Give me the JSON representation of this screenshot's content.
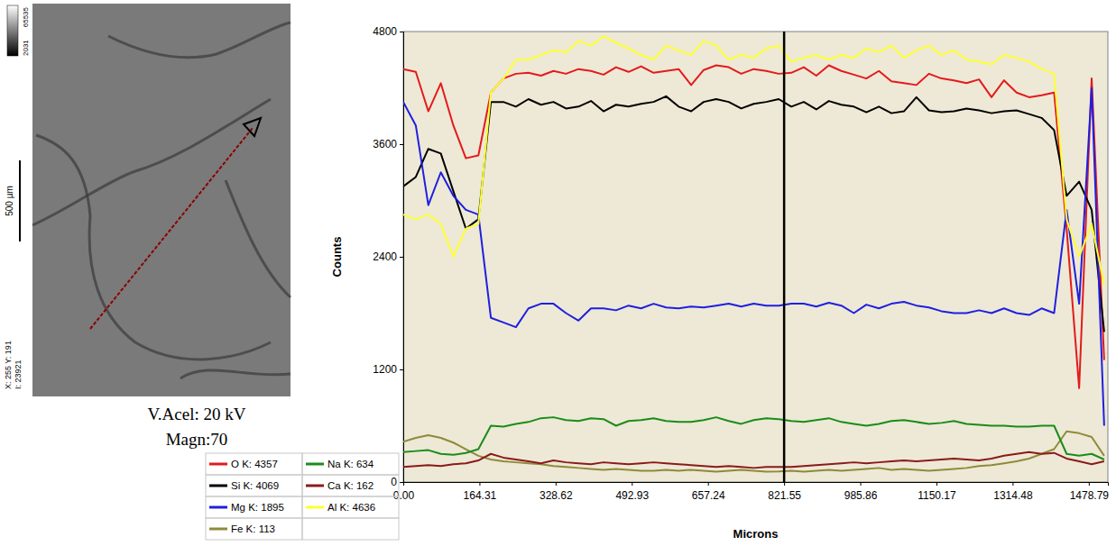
{
  "chart_data": {
    "type": "line",
    "xlabel": "Microns",
    "ylabel": "Counts",
    "x": [
      0,
      27,
      54,
      81,
      108,
      135,
      162,
      189,
      216,
      243,
      270,
      297,
      324,
      351,
      378,
      405,
      432,
      459,
      486,
      513,
      540,
      567,
      594,
      621,
      648,
      675,
      702,
      729,
      756,
      783,
      810,
      837,
      864,
      891,
      918,
      945,
      972,
      999,
      1026,
      1053,
      1080,
      1107,
      1134,
      1161,
      1188,
      1215,
      1242,
      1269,
      1296,
      1323,
      1350,
      1377,
      1404,
      1431,
      1458,
      1485,
      1512
    ],
    "xlim": [
      0,
      1520
    ],
    "xticks": [
      {
        "value": 0,
        "label": "0.00"
      },
      164.31,
      328.62,
      492.93,
      657.24,
      821.55,
      985.86,
      1150.17,
      1314.48,
      1478.79
    ],
    "ylim": [
      0,
      4800
    ],
    "yticks": [
      0,
      1200,
      2400,
      3600,
      4800
    ],
    "grid": false,
    "legend": "bottom left",
    "cursor_x": 821.55,
    "series": [
      {
        "name": "O K: 4357",
        "color": "#e41a1c",
        "values": [
          4400,
          4370,
          3950,
          4250,
          3800,
          3450,
          3480,
          4150,
          4300,
          4350,
          4360,
          4330,
          4380,
          4350,
          4400,
          4380,
          4340,
          4420,
          4370,
          4430,
          4360,
          4380,
          4400,
          4230,
          4390,
          4440,
          4420,
          4350,
          4400,
          4380,
          4350,
          4360,
          4420,
          4330,
          4440,
          4380,
          4340,
          4300,
          4380,
          4270,
          4250,
          4230,
          4350,
          4300,
          4280,
          4250,
          4290,
          4100,
          4280,
          4150,
          4100,
          4120,
          4150,
          2700,
          1000,
          4300,
          1300
        ]
      },
      {
        "name": "Si K: 4069",
        "color": "#000000",
        "values": [
          3150,
          3250,
          3550,
          3500,
          3100,
          2700,
          2800,
          4050,
          4050,
          4000,
          4080,
          4020,
          4050,
          3980,
          4000,
          4060,
          3950,
          4020,
          4000,
          4030,
          4050,
          4110,
          4000,
          3950,
          4050,
          4080,
          4050,
          3980,
          4030,
          4050,
          4080,
          4000,
          4050,
          3970,
          4060,
          4020,
          4000,
          3940,
          4000,
          3930,
          3950,
          4100,
          3960,
          3940,
          3950,
          3980,
          3960,
          3930,
          3950,
          3960,
          3920,
          3880,
          3750,
          3050,
          3200,
          2900,
          1600
        ]
      },
      {
        "name": "Mg K: 1895",
        "color": "#1f1fe0",
        "values": [
          4050,
          3800,
          2950,
          3300,
          3050,
          2900,
          2850,
          1750,
          1700,
          1650,
          1850,
          1900,
          1900,
          1800,
          1720,
          1850,
          1850,
          1830,
          1880,
          1850,
          1900,
          1860,
          1850,
          1870,
          1860,
          1880,
          1900,
          1870,
          1900,
          1880,
          1880,
          1900,
          1900,
          1870,
          1910,
          1880,
          1800,
          1890,
          1850,
          1900,
          1920,
          1880,
          1860,
          1820,
          1800,
          1800,
          1830,
          1800,
          1850,
          1800,
          1780,
          1850,
          1800,
          2900,
          1900,
          4200,
          600
        ]
      },
      {
        "name": "Fe K: 113",
        "color": "#8f8a3a",
        "values": [
          430,
          470,
          500,
          470,
          420,
          350,
          280,
          240,
          220,
          210,
          200,
          190,
          170,
          160,
          150,
          140,
          130,
          140,
          130,
          120,
          120,
          130,
          120,
          130,
          120,
          110,
          120,
          130,
          120,
          110,
          113,
          120,
          110,
          120,
          130,
          120,
          130,
          140,
          150,
          130,
          140,
          130,
          120,
          130,
          140,
          150,
          170,
          180,
          200,
          220,
          250,
          300,
          350,
          540,
          520,
          480,
          280
        ]
      },
      {
        "name": "Na K: 634",
        "color": "#1a8c1a",
        "values": [
          320,
          330,
          340,
          300,
          290,
          310,
          350,
          600,
          590,
          620,
          640,
          680,
          690,
          660,
          650,
          680,
          670,
          600,
          650,
          660,
          680,
          650,
          640,
          640,
          660,
          690,
          650,
          620,
          660,
          680,
          670,
          650,
          640,
          660,
          680,
          640,
          620,
          600,
          620,
          650,
          660,
          640,
          620,
          630,
          650,
          620,
          610,
          600,
          600,
          590,
          590,
          600,
          600,
          300,
          280,
          300,
          240
        ]
      },
      {
        "name": "Ca K: 162",
        "color": "#8b1a1a",
        "values": [
          160,
          170,
          180,
          170,
          190,
          200,
          230,
          300,
          260,
          240,
          220,
          200,
          230,
          210,
          200,
          190,
          210,
          200,
          190,
          200,
          210,
          200,
          190,
          180,
          170,
          160,
          170,
          160,
          150,
          160,
          162,
          160,
          170,
          180,
          190,
          200,
          210,
          200,
          210,
          220,
          230,
          220,
          230,
          240,
          250,
          240,
          230,
          250,
          280,
          300,
          320,
          300,
          310,
          250,
          220,
          190,
          220
        ]
      },
      {
        "name": "Al K: 4636",
        "color": "#ffff33",
        "values": [
          2850,
          2800,
          2850,
          2750,
          2400,
          2700,
          2750,
          4150,
          4300,
          4500,
          4500,
          4550,
          4600,
          4580,
          4700,
          4650,
          4750,
          4680,
          4620,
          4550,
          4500,
          4650,
          4600,
          4550,
          4700,
          4650,
          4500,
          4550,
          4520,
          4620,
          4650,
          4480,
          4520,
          4550,
          4500,
          4550,
          4520,
          4620,
          4580,
          4650,
          4520,
          4600,
          4650,
          4550,
          4600,
          4500,
          4480,
          4450,
          4550,
          4520,
          4480,
          4400,
          4350,
          2800,
          2400,
          2750,
          2100
        ]
      }
    ]
  },
  "image_panel": {
    "gray_max": 65535,
    "gray_min": 2031,
    "scale_bar": "500 µm",
    "cursor_info": [
      "X: 255 Y: 191",
      "I: 23921"
    ],
    "accel": "V.Acel: 20 kV",
    "magnification": "Magn:70"
  }
}
